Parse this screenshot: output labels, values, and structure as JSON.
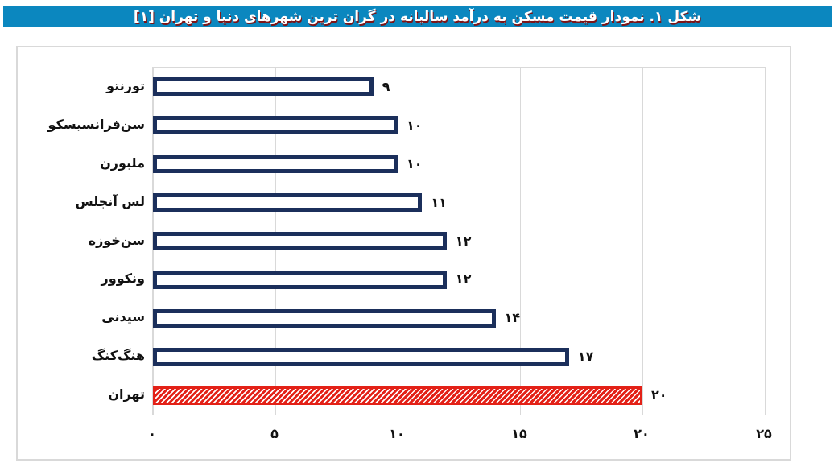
{
  "banner": {
    "title": "شکل ۱. نمودار قیمت مسکن به درآمد سالیانه در گران ترین شهرهای دنیا و تهران [۱]",
    "bg_color": "#0b87bf",
    "text_color": "#ffffff",
    "shadow_color": "#7e1416"
  },
  "chart_data": {
    "type": "bar",
    "orientation": "horizontal",
    "title": "شکل ۱. نمودار قیمت مسکن به درآمد سالیانه در گران ترین شهرهای دنیا و تهران [۱]",
    "categories": [
      "تورنتو",
      "سن‌فرانسیسکو",
      "ملبورن",
      "لس آنجلس",
      "سن‌خوزه",
      "ونکوور",
      "سیدنی",
      "هنگ‌کنگ",
      "تهران"
    ],
    "values": [
      9,
      10,
      10,
      11,
      12,
      12,
      14,
      17,
      20
    ],
    "value_labels": [
      "۹",
      "۱۰",
      "۱۰",
      "۱۱",
      "۱۲",
      "۱۲",
      "۱۴",
      "۱۷",
      "۲۰"
    ],
    "x_ticks": [
      0,
      5,
      10,
      15,
      20,
      25
    ],
    "x_tick_labels": [
      "۰",
      "۵",
      "۱۰",
      "۱۵",
      "۲۰",
      "۲۵"
    ],
    "xlim": [
      0,
      25
    ],
    "grid": true,
    "legend": "none",
    "bar_fill_default": "#ffffff",
    "bar_border_default": "#1b2f5b",
    "highlight_category": "تهران",
    "highlight_color": "#e32117",
    "highlight_style": "diagonal-hatch",
    "gridline_color": "#d9d9d9",
    "label_color": "#111111"
  }
}
